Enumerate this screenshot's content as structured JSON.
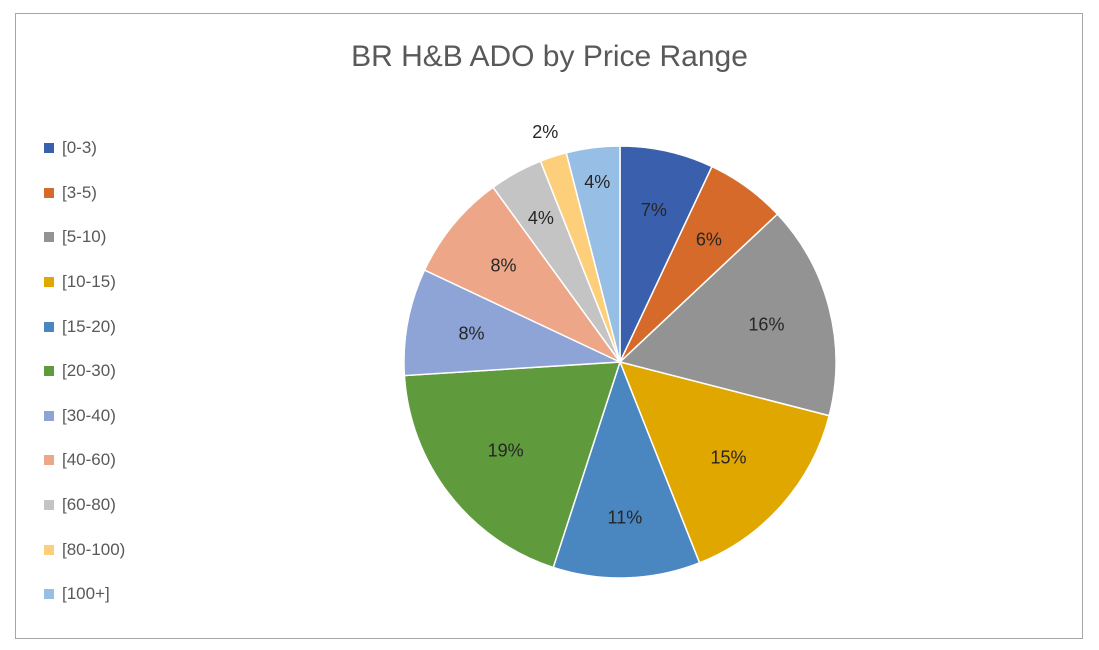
{
  "chart_data": {
    "type": "pie",
    "title": "BR H&B ADO by Price Range",
    "categories": [
      "[0-3)",
      "[3-5)",
      "[5-10)",
      "[10-15)",
      "[15-20)",
      "[20-30)",
      "[30-40)",
      "[40-60)",
      "[60-80)",
      "[80-100)",
      "[100+]"
    ],
    "values": [
      7,
      6,
      16,
      15,
      11,
      19,
      8,
      8,
      4,
      2,
      4
    ],
    "data_labels": [
      "7%",
      "6%",
      "16%",
      "15%",
      "11%",
      "19%",
      "8%",
      "8%",
      "4%",
      "2%",
      "4%"
    ],
    "colors": [
      "#3a5fad",
      "#d56a2a",
      "#939393",
      "#e0a700",
      "#4a86c0",
      "#5f9a3c",
      "#8ea3d6",
      "#eda688",
      "#c4c4c4",
      "#fecf7a",
      "#97bee4"
    ],
    "legend_position": "left",
    "start_angle": "12 o'clock",
    "direction": "clockwise"
  }
}
